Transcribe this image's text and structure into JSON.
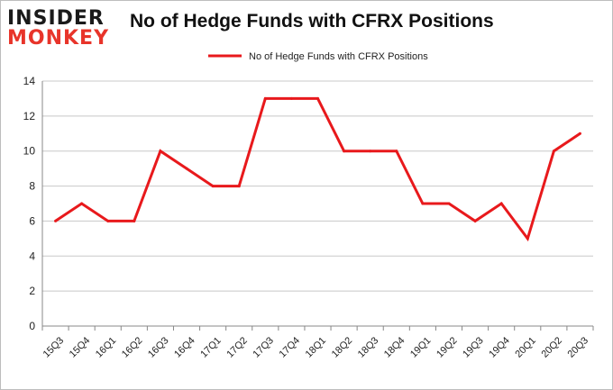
{
  "logo": {
    "line1": "INSIDER",
    "line2": "MONKEY"
  },
  "chart_data": {
    "type": "line",
    "title": "No of Hedge Funds with CFRX Positions",
    "xlabel": "",
    "ylabel": "",
    "categories": [
      "15Q3",
      "15Q4",
      "16Q1",
      "16Q2",
      "16Q3",
      "16Q4",
      "17Q1",
      "17Q2",
      "17Q3",
      "17Q4",
      "18Q1",
      "18Q2",
      "18Q3",
      "18Q4",
      "19Q1",
      "19Q2",
      "19Q3",
      "19Q4",
      "20Q1",
      "20Q2",
      "20Q3"
    ],
    "series": [
      {
        "name": "No of Hedge Funds with CFRX Positions",
        "values": [
          6,
          7,
          6,
          6,
          10,
          9,
          8,
          8,
          13,
          13,
          13,
          10,
          10,
          10,
          7,
          7,
          6,
          7,
          5,
          10,
          11
        ]
      }
    ],
    "ylim": [
      0,
      14
    ],
    "yticks": [
      0,
      2,
      4,
      6,
      8,
      10,
      12,
      14
    ],
    "grid": true,
    "legend": "top-center",
    "line_color": "#e8191c",
    "grid_color": "#c8c8c8"
  }
}
